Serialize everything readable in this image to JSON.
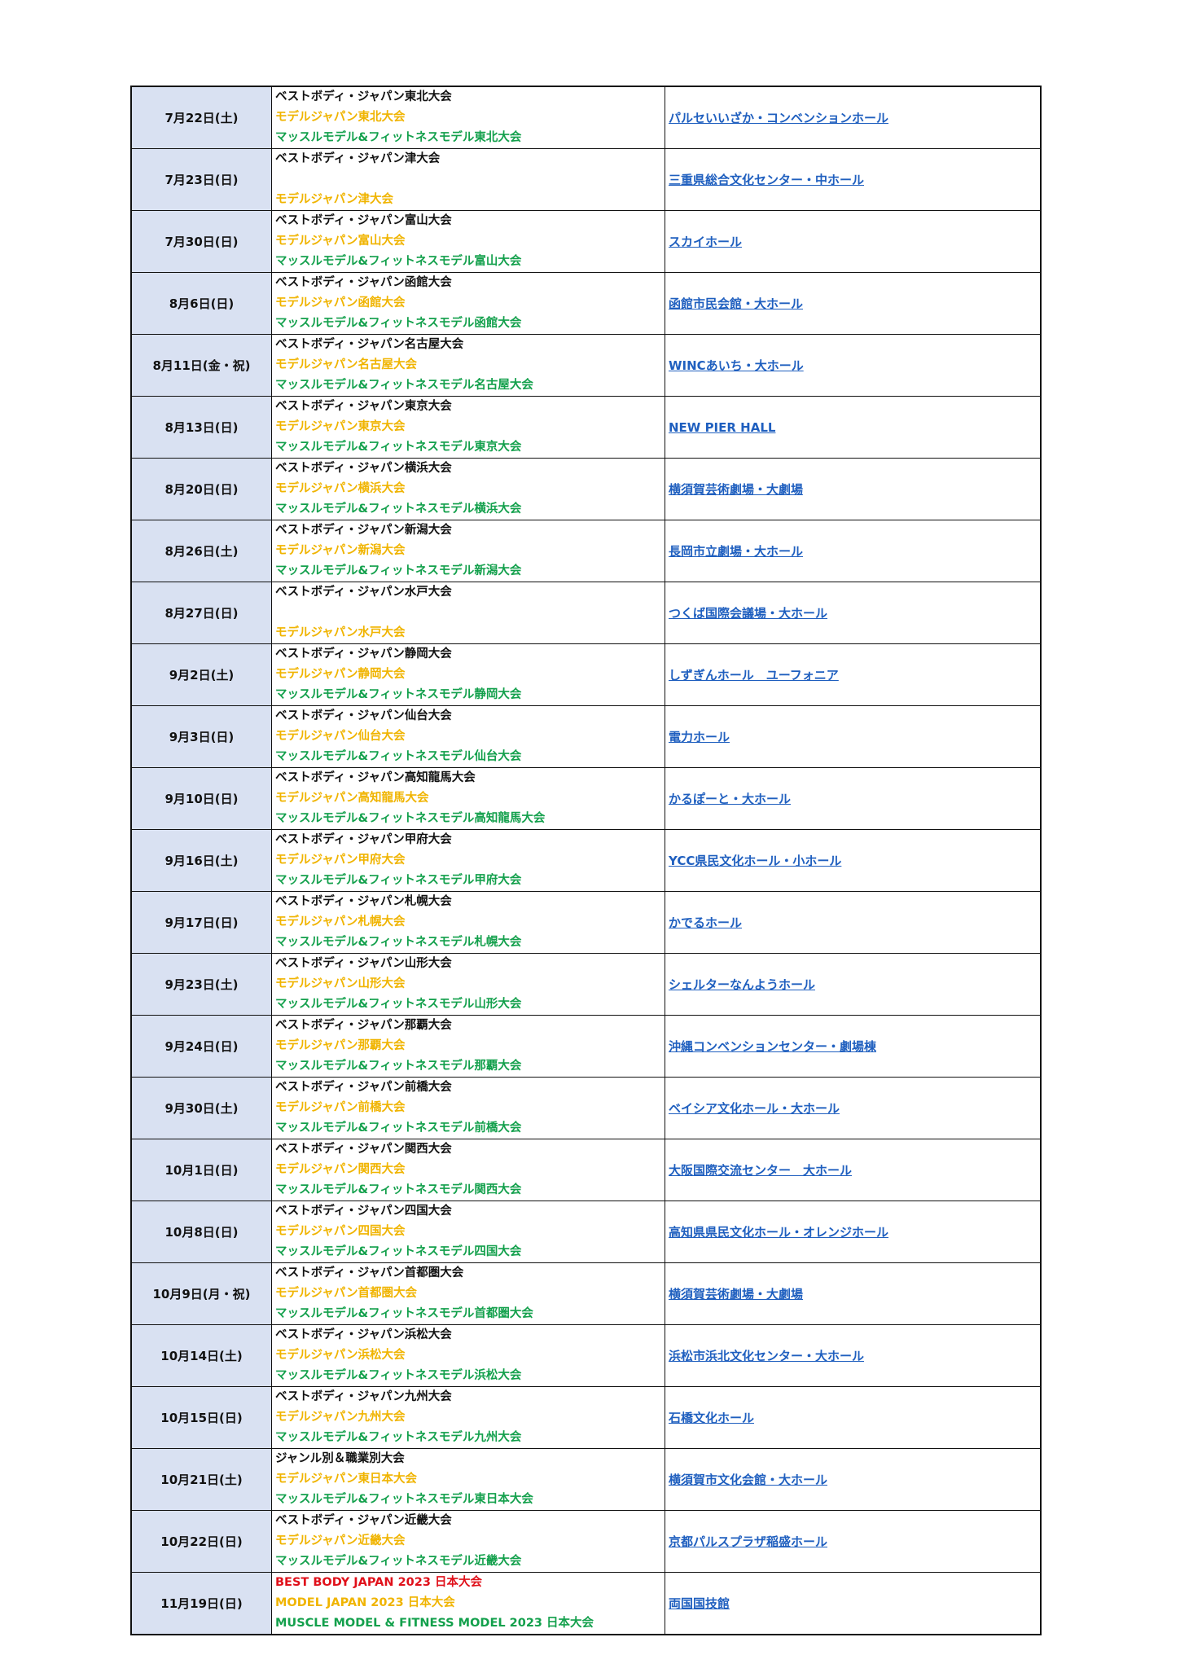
{
  "colors": {
    "black": "#111111",
    "orange": "#f0b400",
    "green": "#13a04c",
    "red": "#e0101a",
    "link": "#1f5fbf",
    "date_bg": "#d9e1f2"
  },
  "rows": [
    {
      "date": "7月22日(土)",
      "lines": [
        {
          "text": "ベストボディ・ジャパン東北大会",
          "color": "black"
        },
        {
          "text": "モデルジャパン東北大会",
          "color": "orange"
        },
        {
          "text": "マッスルモデル&フィットネスモデル東北大会",
          "color": "green"
        }
      ],
      "venue": "パルセいいざか・コンベンションホール"
    },
    {
      "date": "7月23日(日)",
      "lines": [
        {
          "text": "ベストボディ・ジャパン津大会",
          "color": "black"
        },
        {
          "text": "",
          "color": "black"
        },
        {
          "text": "モデルジャパン津大会",
          "color": "orange"
        }
      ],
      "venue": "三重県総合文化センター・中ホール"
    },
    {
      "date": "7月30日(日)",
      "lines": [
        {
          "text": "ベストボディ・ジャパン富山大会",
          "color": "black"
        },
        {
          "text": "モデルジャパン富山大会",
          "color": "orange"
        },
        {
          "text": "マッスルモデル&フィットネスモデル富山大会",
          "color": "green"
        }
      ],
      "venue": "スカイホール"
    },
    {
      "date": "8月6日(日)",
      "lines": [
        {
          "text": "ベストボディ・ジャパン函館大会",
          "color": "black"
        },
        {
          "text": "モデルジャパン函館大会",
          "color": "orange"
        },
        {
          "text": "マッスルモデル&フィットネスモデル函館大会",
          "color": "green"
        }
      ],
      "venue": "函館市民会館・大ホール"
    },
    {
      "date": "8月11日(金・祝)",
      "lines": [
        {
          "text": "ベストボディ・ジャパン名古屋大会",
          "color": "black"
        },
        {
          "text": "モデルジャパン名古屋大会",
          "color": "orange"
        },
        {
          "text": "マッスルモデル&フィットネスモデル名古屋大会",
          "color": "green"
        }
      ],
      "venue": "WINCあいち・大ホール"
    },
    {
      "date": "8月13日(日)",
      "lines": [
        {
          "text": "ベストボディ・ジャパン東京大会",
          "color": "black"
        },
        {
          "text": "モデルジャパン東京大会",
          "color": "orange"
        },
        {
          "text": "マッスルモデル&フィットネスモデル東京大会",
          "color": "green"
        }
      ],
      "venue": "NEW PIER HALL"
    },
    {
      "date": "8月20日(日)",
      "lines": [
        {
          "text": "ベストボディ・ジャパン横浜大会",
          "color": "black"
        },
        {
          "text": "モデルジャパン横浜大会",
          "color": "orange"
        },
        {
          "text": "マッスルモデル&フィットネスモデル横浜大会",
          "color": "green"
        }
      ],
      "venue": "横須賀芸術劇場・大劇場"
    },
    {
      "date": "8月26日(土)",
      "lines": [
        {
          "text": "ベストボディ・ジャパン新潟大会",
          "color": "black"
        },
        {
          "text": "モデルジャパン新潟大会",
          "color": "orange"
        },
        {
          "text": "マッスルモデル&フィットネスモデル新潟大会",
          "color": "green"
        }
      ],
      "venue": "長岡市立劇場・大ホール"
    },
    {
      "date": "8月27日(日)",
      "lines": [
        {
          "text": "ベストボディ・ジャパン水戸大会",
          "color": "black"
        },
        {
          "text": "",
          "color": "black"
        },
        {
          "text": "モデルジャパン水戸大会",
          "color": "orange"
        }
      ],
      "venue": "つくば国際会議場・大ホール"
    },
    {
      "date": "9月2日(土)",
      "lines": [
        {
          "text": "ベストボディ・ジャパン静岡大会",
          "color": "black"
        },
        {
          "text": "モデルジャパン静岡大会",
          "color": "orange"
        },
        {
          "text": "マッスルモデル&フィットネスモデル静岡大会",
          "color": "green"
        }
      ],
      "venue": "しずぎんホール　ユーフォニア"
    },
    {
      "date": "9月3日(日)",
      "lines": [
        {
          "text": "ベストボディ・ジャパン仙台大会",
          "color": "black"
        },
        {
          "text": "モデルジャパン仙台大会",
          "color": "orange"
        },
        {
          "text": "マッスルモデル&フィットネスモデル仙台大会",
          "color": "green"
        }
      ],
      "venue": "電力ホール"
    },
    {
      "date": "9月10日(日)",
      "lines": [
        {
          "text": "ベストボディ・ジャパン高知龍馬大会",
          "color": "black"
        },
        {
          "text": "モデルジャパン高知龍馬大会",
          "color": "orange"
        },
        {
          "text": "マッスルモデル&フィットネスモデル高知龍馬大会",
          "color": "green"
        }
      ],
      "venue": "かるぽーと・大ホール"
    },
    {
      "date": "9月16日(土)",
      "lines": [
        {
          "text": "ベストボディ・ジャパン甲府大会",
          "color": "black"
        },
        {
          "text": "モデルジャパン甲府大会",
          "color": "orange"
        },
        {
          "text": "マッスルモデル&フィットネスモデル甲府大会",
          "color": "green"
        }
      ],
      "venue": "YCC県民文化ホール・小ホール"
    },
    {
      "date": "9月17日(日)",
      "lines": [
        {
          "text": "ベストボディ・ジャパン札幌大会",
          "color": "black"
        },
        {
          "text": "モデルジャパン札幌大会",
          "color": "orange"
        },
        {
          "text": "マッスルモデル&フィットネスモデル札幌大会",
          "color": "green"
        }
      ],
      "venue": "かでるホール"
    },
    {
      "date": "9月23日(土)",
      "lines": [
        {
          "text": "ベストボディ・ジャパン山形大会",
          "color": "black"
        },
        {
          "text": "モデルジャパン山形大会",
          "color": "orange"
        },
        {
          "text": "マッスルモデル&フィットネスモデル山形大会",
          "color": "green"
        }
      ],
      "venue": "シェルターなんようホール"
    },
    {
      "date": "9月24日(日)",
      "lines": [
        {
          "text": "ベストボディ・ジャパン那覇大会",
          "color": "black"
        },
        {
          "text": "モデルジャパン那覇大会",
          "color": "orange"
        },
        {
          "text": "マッスルモデル&フィットネスモデル那覇大会",
          "color": "green"
        }
      ],
      "venue": "沖縄コンベンションセンター・劇場棟"
    },
    {
      "date": "9月30日(土)",
      "lines": [
        {
          "text": "ベストボディ・ジャパン前橋大会",
          "color": "black"
        },
        {
          "text": "モデルジャパン前橋大会",
          "color": "orange"
        },
        {
          "text": "マッスルモデル&フィットネスモデル前橋大会",
          "color": "green"
        }
      ],
      "venue": "ベイシア文化ホール・大ホール"
    },
    {
      "date": "10月1日(日)",
      "lines": [
        {
          "text": "ベストボディ・ジャパン関西大会",
          "color": "black"
        },
        {
          "text": "モデルジャパン関西大会",
          "color": "orange"
        },
        {
          "text": "マッスルモデル&フィットネスモデル関西大会",
          "color": "green"
        }
      ],
      "venue": "大阪国際交流センター　大ホール"
    },
    {
      "date": "10月8日(日)",
      "lines": [
        {
          "text": "ベストボディ・ジャパン四国大会",
          "color": "black"
        },
        {
          "text": "モデルジャパン四国大会",
          "color": "orange"
        },
        {
          "text": "マッスルモデル&フィットネスモデル四国大会",
          "color": "green"
        }
      ],
      "venue": "高知県県民文化ホール・オレンジホール"
    },
    {
      "date": "10月9日(月・祝)",
      "lines": [
        {
          "text": "ベストボディ・ジャパン首都圏大会",
          "color": "black"
        },
        {
          "text": "モデルジャパン首都圏大会",
          "color": "orange"
        },
        {
          "text": "マッスルモデル&フィットネスモデル首都圏大会",
          "color": "green"
        }
      ],
      "venue": "横須賀芸術劇場・大劇場"
    },
    {
      "date": "10月14日(土)",
      "lines": [
        {
          "text": "ベストボディ・ジャパン浜松大会",
          "color": "black"
        },
        {
          "text": "モデルジャパン浜松大会",
          "color": "orange"
        },
        {
          "text": "マッスルモデル&フィットネスモデル浜松大会",
          "color": "green"
        }
      ],
      "venue": "浜松市浜北文化センター・大ホール"
    },
    {
      "date": "10月15日(日)",
      "lines": [
        {
          "text": "ベストボディ・ジャパン九州大会",
          "color": "black"
        },
        {
          "text": "モデルジャパン九州大会",
          "color": "orange"
        },
        {
          "text": "マッスルモデル&フィットネスモデル九州大会",
          "color": "green"
        }
      ],
      "venue": "石橋文化ホール"
    },
    {
      "date": "10月21日(土)",
      "lines": [
        {
          "text": "ジャンル別＆職業別大会",
          "color": "black"
        },
        {
          "text": "モデルジャパン東日本大会",
          "color": "orange"
        },
        {
          "text": "マッスルモデル&フィットネスモデル東日本大会",
          "color": "green"
        }
      ],
      "venue": "横須賀市文化会館・大ホール"
    },
    {
      "date": "10月22日(日)",
      "lines": [
        {
          "text": "ベストボディ・ジャパン近畿大会",
          "color": "black"
        },
        {
          "text": "モデルジャパン近畿大会",
          "color": "orange"
        },
        {
          "text": "マッスルモデル&フィットネスモデル近畿大会",
          "color": "green"
        }
      ],
      "venue": "京都パルスプラザ稲盛ホール"
    },
    {
      "date": "11月19日(日)",
      "lines": [
        {
          "text": "BEST BODY JAPAN 2023 日本大会",
          "color": "red"
        },
        {
          "text": "MODEL JAPAN 2023 日本大会",
          "color": "orange"
        },
        {
          "text": "MUSCLE MODEL & FITNESS MODEL 2023 日本大会",
          "color": "green"
        }
      ],
      "venue": "両国国技館"
    }
  ]
}
